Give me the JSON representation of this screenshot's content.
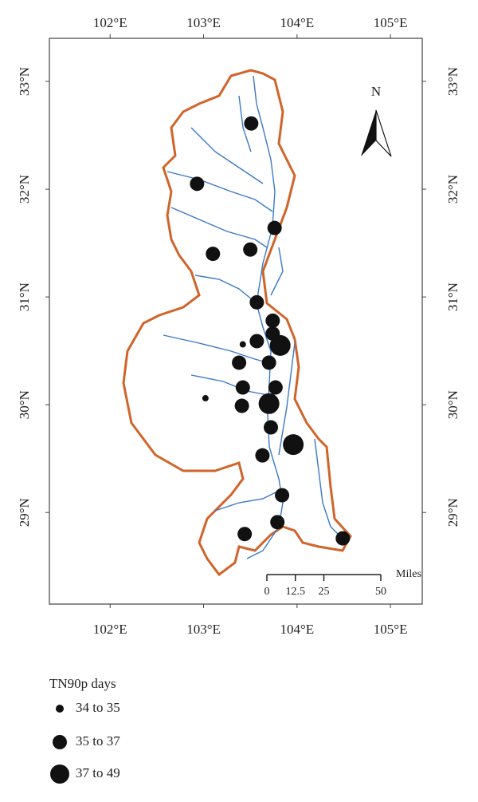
{
  "map": {
    "lon_range": [
      101.35,
      105.34
    ],
    "lat_range": [
      28.15,
      33.4
    ],
    "lon_ticks": [
      {
        "value": 102,
        "label": "102°E"
      },
      {
        "value": 103,
        "label": "103°E"
      },
      {
        "value": 104,
        "label": "104°E"
      },
      {
        "value": 105,
        "label": "105°E"
      }
    ],
    "lat_ticks": [
      {
        "value": 33,
        "label": "33°N"
      },
      {
        "value": 32,
        "label": "32°N"
      },
      {
        "value": 31,
        "label": "31°N"
      },
      {
        "value": 30,
        "label": "30°N"
      },
      {
        "value": 29,
        "label": "29°N"
      }
    ],
    "north_label": "N",
    "scale_bar": {
      "unit": "Miles",
      "ticks": [
        0,
        12.5,
        25,
        50
      ]
    },
    "legend": {
      "title": "TN90p days",
      "items": [
        {
          "label": "34 to 35",
          "stations": [
            [
              103.42,
              30.56
            ],
            [
              103.02,
              30.06
            ]
          ]
        },
        {
          "label": "35 to 37",
          "stations": [
            [
              103.51,
              32.61
            ],
            [
              102.93,
              32.05
            ],
            [
              103.76,
              31.64
            ],
            [
              103.1,
              31.4
            ],
            [
              103.5,
              31.44
            ],
            [
              103.57,
              30.95
            ],
            [
              103.74,
              30.78
            ],
            [
              103.74,
              30.66
            ],
            [
              103.57,
              30.59
            ],
            [
              103.7,
              30.39
            ],
            [
              103.38,
              30.39
            ],
            [
              103.77,
              30.16
            ],
            [
              103.42,
              30.16
            ],
            [
              103.41,
              29.99
            ],
            [
              103.72,
              29.79
            ],
            [
              103.63,
              29.53
            ],
            [
              103.84,
              29.16
            ],
            [
              103.79,
              28.91
            ],
            [
              103.44,
              28.8
            ],
            [
              104.49,
              28.76
            ]
          ]
        },
        {
          "label": "37 to 49",
          "stations": [
            [
              103.82,
              30.55
            ],
            [
              103.96,
              29.63
            ],
            [
              103.7,
              30.01
            ]
          ]
        }
      ]
    }
  }
}
